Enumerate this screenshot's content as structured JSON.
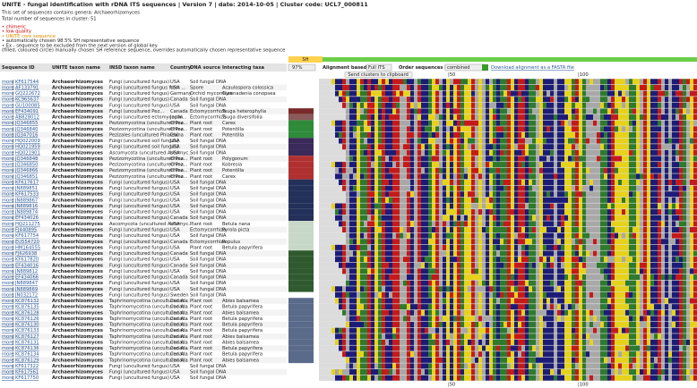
{
  "header": {
    "title": "UNITE - fungal identification with rDNA ITS sequences | Version 7 | date: 2014-10-05 | Cluster code: UCL7_000811",
    "genera": "This set of sequences contains genera: Archaeorhizomyces",
    "total": "Total number of sequences in cluster: 51"
  },
  "legend": [
    {
      "text": "• chimeric",
      "color": "#cc0000"
    },
    {
      "text": "• low quality",
      "color": "#cc0000"
    },
    {
      "text": "• UNITE core sequence",
      "color": "#e08a00"
    },
    {
      "text": "• automatically chosen 98.5% SH representative sequence",
      "color": "#222222"
    },
    {
      "text": "• Ex - sequence to be excluded from the next version of global key",
      "color": "#222222"
    },
    {
      "text": "(filled, coloured circle) manually chosen SH reference sequence, overrides automatically chosen representative sequence",
      "color": "#222222"
    }
  ],
  "controls": {
    "sh": "SH",
    "threshold": "97%",
    "align_label": "Alignment based on:",
    "align_value": "Full ITS",
    "order_label": "Order sequences by:",
    "order_value": "combined",
    "download": "Download alignment as a FASTA file",
    "clipboard": "Send clusters to clipboard",
    "pos50": "|50",
    "pos100": "|100"
  },
  "columns": [
    "Sequence ID",
    "UNITE taxon name",
    "INSD taxon name",
    "Country",
    "DNA source",
    "Interacting taxa"
  ],
  "rows": [
    {
      "more": "more",
      "id": "KF617544",
      "unite": "Archaeorhizomyces",
      "insd": "Fungi (uncultured fungus)",
      "country": "USA",
      "source": "Soil fungal DNA"
    },
    {
      "more": "more",
      "id": "AF133791",
      "unite": "Archaeorhizomyces",
      "insd": "Fungi (uncultured fungus from ...",
      "country": "USA",
      "source": "Spore",
      "taxa": "Acaulospora colossica"
    },
    {
      "more": "more",
      "id": "GQ222672",
      "unite": "Archaeorhizomyces",
      "insd": "Fungi (uncultured fungus)",
      "country": "Germany",
      "source": "Orchid mycorrhiza",
      "taxa": "Gymnadenia conopsea"
    },
    {
      "more": "more",
      "id": "KC965637",
      "unite": "Archaeorhizomyces",
      "insd": "Fungi (uncultured fungus)",
      "country": "Canada",
      "source": "Soil fungal DNA"
    },
    {
      "more": "more",
      "id": "GU100085",
      "unite": "Archaeorhizomyces",
      "insd": "Fungi (uncultured fungus)",
      "country": "USA",
      "source": "Soil fungal DNA"
    },
    {
      "more": "more",
      "id": "EF434091",
      "unite": "Archaeorhizomyces",
      "insd": "Fungi (uncultured Pez...",
      "country": "Canada",
      "source": "Ectomycorrhiza",
      "taxa": "Tsuga heterophylla",
      "color": "#7a2a2a"
    },
    {
      "more": "more",
      "id": "AB828012",
      "unite": "Archaeorhizomyces",
      "insd": "Fungi (uncultured ectomycorrhi...",
      "country": "Japan",
      "source": "Ectomycorrhiza",
      "taxa": "Tsuga diversifolia",
      "color": "#8a5a5a"
    },
    {
      "more": "more",
      "id": "JQ346855",
      "unite": "Archaeorhizomyces",
      "insd": "Pezizomycotina (uncultured Pez...",
      "country": "China",
      "source": "Plant root",
      "taxa": "Carex",
      "color": "#2e8b3a"
    },
    {
      "more": "more",
      "id": "JQ346840",
      "unite": "Archaeorhizomyces",
      "insd": "Pezizomycotina (uncultured Pez...",
      "country": "China",
      "source": "Plant root",
      "taxa": "Potentilla",
      "color": "#2e8b3a"
    },
    {
      "more": "more",
      "id": "JQ347016",
      "unite": "Archaeorhizomyces",
      "insd": "Pezizales (uncultured Phialea)",
      "country": "China",
      "source": "Plant root",
      "taxa": "Potentilla",
      "color": "#2e8b3a"
    },
    {
      "more": "more",
      "id": "HQ022009",
      "unite": "Archaeorhizomyces",
      "insd": "Fungi (uncultured soil fungus)",
      "country": "USA",
      "source": "Soil fungal DNA",
      "color": "#3a2a5a"
    },
    {
      "more": "more",
      "id": "HQ021959",
      "unite": "Archaeorhizomyces",
      "insd": "Fungi (uncultured soil fungus)",
      "country": "USA",
      "source": "Soil fungal DNA",
      "color": "#3a2a5a"
    },
    {
      "more": "more",
      "id": "HQ021901",
      "unite": "Archaeorhizomyces",
      "insd": "Ascomycota (uncultured Ascomyc...",
      "country": "USA",
      "source": "Soil fungal DNA",
      "color": "#3a2a5a"
    },
    {
      "more": "more",
      "id": "JQ346848",
      "unite": "Archaeorhizomyces",
      "insd": "Pezizomycotina (uncultured Pez...",
      "country": "China",
      "source": "Plant root",
      "taxa": "Polygonum",
      "color": "#b03030"
    },
    {
      "more": "more",
      "id": "JQ346850",
      "unite": "Archaeorhizomyces",
      "insd": "Pezizomycotina (uncultured Pez...",
      "country": "China",
      "source": "Plant root",
      "taxa": "Kobresia",
      "color": "#b03030"
    },
    {
      "more": "more",
      "id": "JQ346866",
      "unite": "Archaeorhizomyces",
      "insd": "Pezizomycotina (uncultured Pez...",
      "country": "China",
      "source": "Plant root",
      "taxa": "Potentilla",
      "color": "#b03030"
    },
    {
      "more": "more",
      "id": "JQ346851",
      "unite": "Archaeorhizomyces",
      "insd": "Pezizomycotina (uncultured Pez...",
      "country": "China",
      "source": "Plant root",
      "taxa": "Carex",
      "color": "#b03030"
    },
    {
      "more": "more",
      "id": "KF617617",
      "unite": "Archaeorhizomyces",
      "insd": "Fungi (uncultured fungus)",
      "country": "USA",
      "source": "Soil fungal DNA",
      "color": "#23305a"
    },
    {
      "more": "more",
      "id": "JN889851",
      "unite": "Archaeorhizomyces",
      "insd": "Fungi (uncultured fungus)",
      "country": "USA",
      "source": "Soil fungal DNA",
      "color": "#23305a"
    },
    {
      "more": "more",
      "id": "KF617533",
      "unite": "Archaeorhizomyces",
      "insd": "Fungi (uncultured fungus)",
      "country": "USA",
      "source": "Soil fungal DNA",
      "color": "#23305a"
    },
    {
      "more": "more",
      "id": "JN889867",
      "unite": "Archaeorhizomyces",
      "insd": "Fungi (uncultured fungus)",
      "country": "USA",
      "source": "Soil fungal DNA",
      "color": "#23305a"
    },
    {
      "more": "more",
      "id": "JN889816",
      "unite": "Archaeorhizomyces",
      "insd": "Fungi (uncultured fungus)",
      "country": "USA",
      "source": "Soil fungal DNA",
      "color": "#23305a"
    },
    {
      "more": "more",
      "id": "JN889874",
      "unite": "Archaeorhizomyces",
      "insd": "Fungi (uncultured fungus)",
      "country": "USA",
      "source": "Soil fungal DNA",
      "color": "#23305a"
    },
    {
      "more": "more",
      "id": "EF434026",
      "unite": "Archaeorhizomyces",
      "insd": "Fungi (uncultured fungus)",
      "country": "Canada",
      "source": "Soil fungal DNA",
      "color": "#23305a"
    },
    {
      "more": "more",
      "id": "HQ211275",
      "unite": "Archaeorhizomyces",
      "insd": "Ascomycota (uncultured Ascomyc...",
      "country": "USA",
      "source": "Plant root",
      "taxa": "Betula nana",
      "color": "#c8d8c8"
    },
    {
      "more": "more",
      "id": "FJ440895",
      "unite": "Archaeorhizomyces",
      "insd": "Fungi (uncultured fungus)",
      "country": "USA",
      "source": "Ectomycorrhiza",
      "taxa": "Pyrola picta",
      "color": "#c8d8c8"
    },
    {
      "more": "more",
      "id": "KF617754",
      "unite": "Archaeorhizomyces",
      "insd": "Fungi (uncultured fungus)",
      "country": "USA",
      "source": "Soil fungal DNA",
      "color": "#c8d8c8"
    },
    {
      "more": "more",
      "id": "EU554720",
      "unite": "Archaeorhizomyces",
      "insd": "Fungi (uncultured fungus)",
      "country": "Canada",
      "source": "Ectomycorrhiza",
      "taxa": "Populus",
      "color": "#c8d8c8"
    },
    {
      "more": "more",
      "id": "HM164555",
      "unite": "Archaeorhizomyces",
      "insd": "Fungi (uncultured fungus)",
      "country": "USA",
      "source": "Plant root",
      "taxa": "Betula papyrifera",
      "color": "#c8d8c8"
    },
    {
      "more": "more",
      "id": "FJ626938",
      "unite": "Archaeorhizomyces",
      "insd": "Fungi (uncultured fungus)",
      "country": "Canada",
      "source": "Soil fungal DNA",
      "color": "#2f5a2f"
    },
    {
      "more": "more",
      "id": "KF617820",
      "unite": "Archaeorhizomyces",
      "insd": "Fungi (uncultured fungus)",
      "country": "USA",
      "source": "Soil fungal DNA",
      "color": "#2f5a2f"
    },
    {
      "more": "more",
      "id": "EF434016",
      "unite": "Archaeorhizomyces",
      "insd": "Fungi (uncultured fungus)",
      "country": "Canada",
      "source": "Soil fungal DNA",
      "color": "#2f5a2f"
    },
    {
      "more": "more",
      "id": "JN889812",
      "unite": "Archaeorhizomyces",
      "insd": "Fungi (uncultured fungus)",
      "country": "USA",
      "source": "Soil fungal DNA",
      "color": "#2f5a2f"
    },
    {
      "more": "more",
      "id": "EF434066",
      "unite": "Archaeorhizomyces",
      "insd": "Fungi (uncultured fungus)",
      "country": "Canada",
      "source": "Soil fungal DNA",
      "color": "#2f5a2f"
    },
    {
      "more": "more",
      "id": "JN889847",
      "unite": "Archaeorhizomyces",
      "insd": "Fungi (uncultured fungus)",
      "country": "USA",
      "source": "Soil fungal DNA",
      "color": "#2f5a2f"
    },
    {
      "more": "more",
      "id": "JN889869",
      "unite": "Archaeorhizomyces",
      "insd": "Fungi (uncultured fungus)",
      "country": "USA",
      "source": "Soil fungal DNA",
      "color": "#2f5a2f"
    },
    {
      "more": "more",
      "id": "JN032172",
      "unite": "Archaeorhizomyces",
      "insd": "Fungi (uncultured fungus)",
      "country": "Sweden",
      "source": "Soil fungal DNA"
    },
    {
      "more": "more",
      "id": "KC876132",
      "unite": "Archaeorhizomyces",
      "insd": "Taphrinomycotina (uncultured A...",
      "country": "Canada",
      "source": "Plant root",
      "taxa": "Abies balsamea",
      "color": "#5a6a8a"
    },
    {
      "more": "more",
      "id": "KC876135",
      "unite": "Archaeorhizomyces",
      "insd": "Taphrinomycotina (uncultured A...",
      "country": "Canada",
      "source": "Plant root",
      "taxa": "Betula papyrifera",
      "color": "#5a6a8a"
    },
    {
      "more": "more",
      "id": "KC876128",
      "unite": "Archaeorhizomyces",
      "insd": "Taphrinomycotina (uncultured A...",
      "country": "Canada",
      "source": "Plant root",
      "taxa": "Abies balsamea",
      "color": "#5a6a8a"
    },
    {
      "more": "more",
      "id": "KC876126",
      "unite": "Archaeorhizomyces",
      "insd": "Taphrinomycotina (uncultured A...",
      "country": "Canada",
      "source": "Plant root",
      "taxa": "Betula papyrifera",
      "color": "#5a6a8a"
    },
    {
      "more": "more",
      "id": "KC876130",
      "unite": "Archaeorhizomyces",
      "insd": "Taphrinomycotina (uncultured A...",
      "country": "Canada",
      "source": "Plant root",
      "taxa": "Betula papyrifera",
      "color": "#5a6a8a"
    },
    {
      "more": "more",
      "id": "KC876133",
      "unite": "Archaeorhizomyces",
      "insd": "Taphrinomycotina (uncultured A...",
      "country": "Canada",
      "source": "Plant root",
      "taxa": "Betula papyrifera",
      "color": "#5a6a8a"
    },
    {
      "more": "more",
      "id": "KC876127",
      "unite": "Archaeorhizomyces",
      "insd": "Taphrinomycotina (uncultured A...",
      "country": "Canada",
      "source": "Plant root",
      "taxa": "Abies balsamea",
      "color": "#5a6a8a"
    },
    {
      "more": "more",
      "id": "KC876131",
      "unite": "Archaeorhizomyces",
      "insd": "Taphrinomycotina (uncultured A...",
      "country": "Canada",
      "source": "Plant root",
      "taxa": "Abies balsamea",
      "color": "#5a6a8a"
    },
    {
      "more": "more",
      "id": "KC876136",
      "unite": "Archaeorhizomyces",
      "insd": "Taphrinomycotina (uncultured A...",
      "country": "Canada",
      "source": "Plant root",
      "taxa": "Betula papyrifera",
      "color": "#5a6a8a"
    },
    {
      "more": "more",
      "id": "KC876134",
      "unite": "Archaeorhizomyces",
      "insd": "Taphrinomycotina (uncultured A...",
      "country": "Canada",
      "source": "Plant root",
      "taxa": "Betula papyrifera",
      "color": "#5a6a8a"
    },
    {
      "more": "more",
      "id": "KC876129",
      "unite": "Archaeorhizomyces",
      "insd": "Taphrinomycotina (uncultured A...",
      "country": "Canada",
      "source": "Plant root",
      "taxa": "Abies balsamea",
      "color": "#5a6a8a"
    },
    {
      "more": "more",
      "id": "KF617322",
      "unite": "Archaeorhizomyces",
      "insd": "Fungi (uncultured fungus)",
      "country": "USA",
      "source": "Soil fungal DNA"
    },
    {
      "more": "more",
      "id": "KF617561",
      "unite": "Archaeorhizomyces",
      "insd": "Fungi (uncultured fungus)",
      "country": "USA",
      "source": "Soil fungal DNA"
    },
    {
      "more": "more",
      "id": "KF617750",
      "unite": "Archaeorhizomyces",
      "insd": "Fungi (uncultured fungus)",
      "country": "USA",
      "source": "Soil fungal DNA"
    }
  ]
}
